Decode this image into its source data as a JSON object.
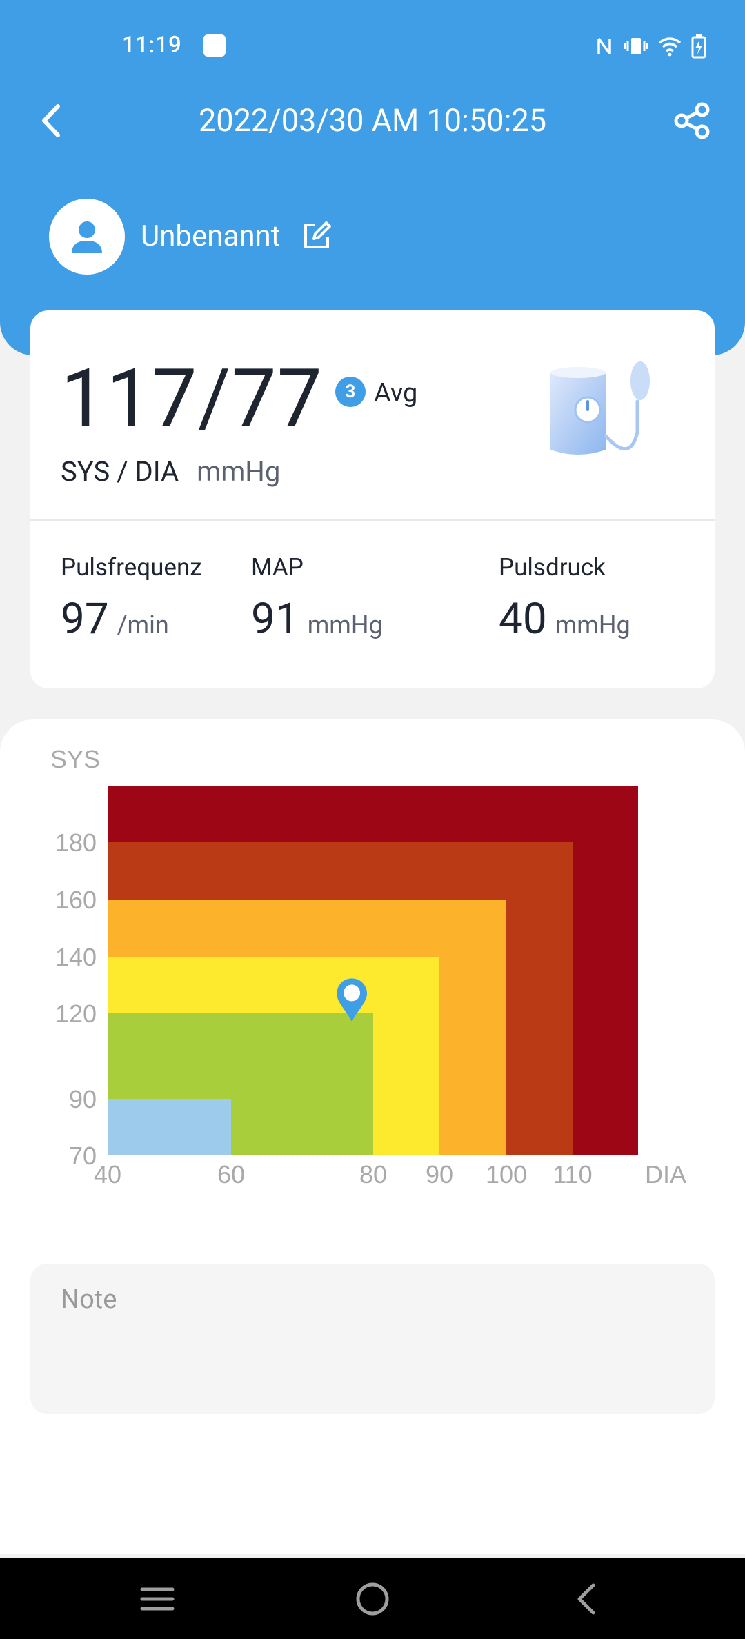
{
  "status_bar": {
    "time": "11:19"
  },
  "header": {
    "title": "2022/03/30 AM 10:50:25",
    "user_name": "Unbenannt",
    "icons": {
      "back": "back-arrow-icon",
      "share": "share-icon",
      "edit": "edit-icon",
      "avatar": "person-icon"
    }
  },
  "reading": {
    "value": "117/77",
    "avg_count": "3",
    "avg_label": "Avg",
    "units_label": "SYS / DIA",
    "units": "mmHg"
  },
  "metrics": [
    {
      "label": "Pulsfrequenz",
      "value": "97",
      "unit": "/min"
    },
    {
      "label": "MAP",
      "value": "91",
      "unit": "mmHg"
    },
    {
      "label": "Pulsdruck",
      "value": "40",
      "unit": "mmHg"
    }
  ],
  "chart_data": {
    "type": "heatmap",
    "ylabel": "SYS",
    "xlabel": "DIA",
    "y_ticks": [
      "70",
      "90",
      "120",
      "140",
      "160",
      "180"
    ],
    "x_ticks": [
      "40",
      "60",
      "80",
      "90",
      "100",
      "110"
    ],
    "zones": [
      {
        "max_dia": 120,
        "max_sys": 200,
        "color": "#9c0615"
      },
      {
        "max_dia": 110,
        "max_sys": 180,
        "color": "#ba3a15"
      },
      {
        "max_dia": 100,
        "max_sys": 160,
        "color": "#fdb22c"
      },
      {
        "max_dia": 90,
        "max_sys": 140,
        "color": "#fdea2f"
      },
      {
        "max_dia": 80,
        "max_sys": 120,
        "color": "#a8cf3b"
      },
      {
        "max_dia": 60,
        "max_sys": 90,
        "color": "#9ccbeb"
      }
    ],
    "point": {
      "dia": 77,
      "sys": 117
    },
    "marker_color": "#3f9ee6"
  },
  "note": {
    "placeholder": "Note"
  },
  "navbar": {
    "icons": [
      "menu-icon",
      "home-icon",
      "back-icon"
    ]
  }
}
